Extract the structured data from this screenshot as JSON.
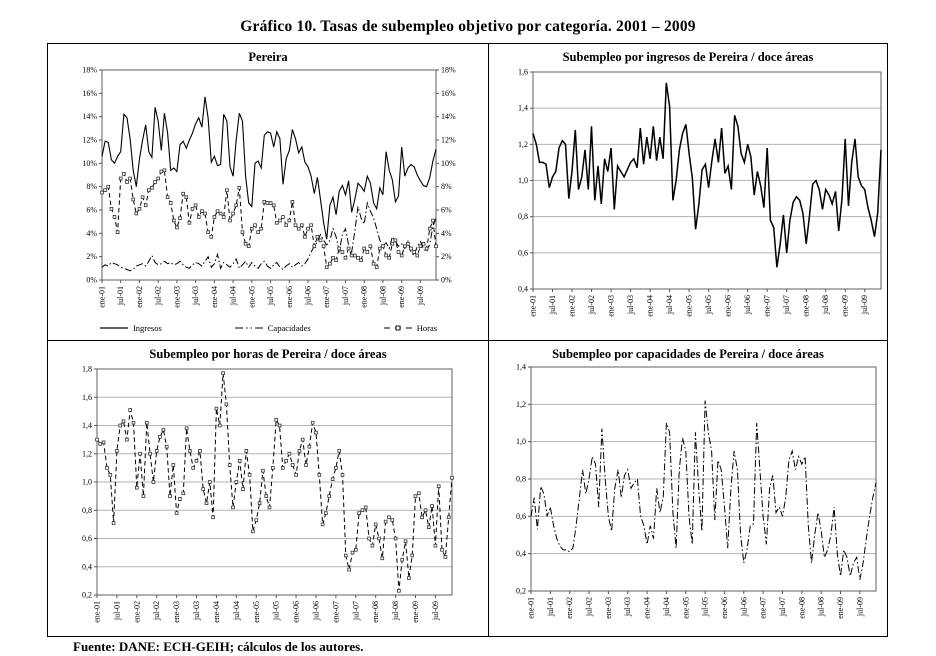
{
  "page": {
    "title": "Gráfico 10. Tasas de subempleo objetivo por categoría. 2001 – 2009",
    "footer": "Fuente: DANE: ECH-GEIH; cálculos de los autores."
  },
  "chart_data": [
    {
      "id": "pereira",
      "type": "line",
      "title": "Pereira",
      "x_label": "",
      "ylabel": "",
      "n_points": 108,
      "x_tick_every": 6,
      "x_tick_labels": [
        "ene-01",
        "jul-01",
        "ene-02",
        "jul-02",
        "ene-03",
        "jul-03",
        "ene-04",
        "jul-04",
        "ene-05",
        "jul-05",
        "ene-06",
        "jul-06",
        "ene-07",
        "jul-07",
        "ene-08",
        "jul-08",
        "ene-09",
        "jul-09"
      ],
      "grid": false,
      "legend_position": "bottom",
      "y_axis": {
        "min": 0,
        "max": 18,
        "step": 2,
        "dual": true,
        "format": "percent",
        "tick_labels": [
          "0%",
          "2%",
          "4%",
          "6%",
          "8%",
          "10%",
          "12%",
          "14%",
          "16%",
          "18%"
        ]
      },
      "series": [
        {
          "name": "Ingresos",
          "style": "solid",
          "marker": "none",
          "width": 1.1,
          "values": [
            10.6,
            11.9,
            11.8,
            10.3,
            10.0,
            10.6,
            11.0,
            14.2,
            13.9,
            12.1,
            9.4,
            8.0,
            10.4,
            12.0,
            13.3,
            11.0,
            10.5,
            14.8,
            13.6,
            11.1,
            14.3,
            12.6,
            9.4,
            9.6,
            9.3,
            11.6,
            11.9,
            11.3,
            12.0,
            12.6,
            13.4,
            13.9,
            13.1,
            15.7,
            13.9,
            10.1,
            10.6,
            9.8,
            9.9,
            14.2,
            13.6,
            9.7,
            8.9,
            12.0,
            14.3,
            13.6,
            8.9,
            6.6,
            6.3,
            10.0,
            10.2,
            9.6,
            12.4,
            12.7,
            12.6,
            11.4,
            12.7,
            12.1,
            8.2,
            10.4,
            11.1,
            12.9,
            12.1,
            10.9,
            11.4,
            10.1,
            9.7,
            8.9,
            7.4,
            8.8,
            6.9,
            4.9,
            3.5,
            6.4,
            7.1,
            5.6,
            7.6,
            8.1,
            7.3,
            8.5,
            5.8,
            6.9,
            8.3,
            8.0,
            7.6,
            8.9,
            8.3,
            6.6,
            6.1,
            7.9,
            7.3,
            11.0,
            9.4,
            8.6,
            6.7,
            7.2,
            11.4,
            8.9,
            9.6,
            9.9,
            9.7,
            9.0,
            8.5,
            8.1,
            8.0,
            8.8,
            10.2,
            11.2
          ]
        },
        {
          "name": "Capacidades",
          "style": "dashdot",
          "marker": "none",
          "width": 1.0,
          "values": [
            1.1,
            1.3,
            1.2,
            1.5,
            1.4,
            1.3,
            1.1,
            1.0,
            0.9,
            0.8,
            0.9,
            1.2,
            1.3,
            1.4,
            1.2,
            1.6,
            2.1,
            1.5,
            1.3,
            1.4,
            1.6,
            1.4,
            1.5,
            1.3,
            1.4,
            1.6,
            1.3,
            1.1,
            1.0,
            1.3,
            1.5,
            1.4,
            1.2,
            1.6,
            2.0,
            1.1,
            1.4,
            2.2,
            1.0,
            1.5,
            1.3,
            1.1,
            1.4,
            1.8,
            1.0,
            1.3,
            1.6,
            1.1,
            1.5,
            1.2,
            1.0,
            1.4,
            1.6,
            1.2,
            1.0,
            1.3,
            1.5,
            1.1,
            0.9,
            1.2,
            1.4,
            1.1,
            1.3,
            1.5,
            1.2,
            1.4,
            1.8,
            2.4,
            2.9,
            3.3,
            3.9,
            3.4,
            3.0,
            3.4,
            4.4,
            3.7,
            2.4,
            3.9,
            4.4,
            3.0,
            2.4,
            4.2,
            6.3,
            5.3,
            4.8,
            6.6,
            5.9,
            5.3,
            4.4,
            3.4,
            2.9,
            3.2,
            2.7,
            3.7,
            3.3,
            2.9,
            3.1,
            2.7,
            3.3,
            2.4,
            2.1,
            2.9,
            3.3,
            2.7,
            2.4,
            3.1,
            4.6,
            5.3
          ]
        },
        {
          "name": "Horas",
          "style": "dashed",
          "marker": "square",
          "width": 1.0,
          "values": [
            7.5,
            7.7,
            8.0,
            6.1,
            5.4,
            4.1,
            8.7,
            9.1,
            8.4,
            8.7,
            6.9,
            5.7,
            6.1,
            7.1,
            6.4,
            7.7,
            7.9,
            8.4,
            8.7,
            9.3,
            9.4,
            7.1,
            6.6,
            5.1,
            4.5,
            5.3,
            7.4,
            7.1,
            4.9,
            6.1,
            6.4,
            5.4,
            5.9,
            5.7,
            4.1,
            3.7,
            5.4,
            5.9,
            5.7,
            5.4,
            7.7,
            5.1,
            5.7,
            6.4,
            7.9,
            4.1,
            3.1,
            2.9,
            4.4,
            4.7,
            4.1,
            4.4,
            6.7,
            6.6,
            6.6,
            6.4,
            4.9,
            5.1,
            5.4,
            4.7,
            5.1,
            6.7,
            4.7,
            4.4,
            4.7,
            3.7,
            4.4,
            4.7,
            2.9,
            3.7,
            3.4,
            2.9,
            1.1,
            1.4,
            1.9,
            1.7,
            2.7,
            2.4,
            1.9,
            2.7,
            2.1,
            2.1,
            1.9,
            1.7,
            2.7,
            2.4,
            2.9,
            1.4,
            1.1,
            2.7,
            2.9,
            2.1,
            1.9,
            3.1,
            3.4,
            2.4,
            2.1,
            2.9,
            3.1,
            2.7,
            2.4,
            2.1,
            2.9,
            3.1,
            2.7,
            4.4,
            5.1,
            2.9
          ]
        }
      ]
    },
    {
      "id": "ingresos-ratio",
      "type": "line",
      "title": "Subempleo por ingresos de Pereira / doce áreas",
      "n_points": 108,
      "x_tick_every": 6,
      "x_tick_labels": [
        "ene-01",
        "jul-01",
        "ene-02",
        "jul-02",
        "ene-03",
        "jul-03",
        "ene-04",
        "jul-04",
        "ene-05",
        "jul-05",
        "ene-06",
        "jul-06",
        "ene-07",
        "jul-07",
        "ene-08",
        "jul-08",
        "ene-09",
        "jul-09"
      ],
      "grid": true,
      "legend_position": "none",
      "y_axis": {
        "min": 0.4,
        "max": 1.6,
        "step": 0.2,
        "dual": false,
        "format": "comma-decimal",
        "tick_labels": [
          "0,4",
          "0,6",
          "0,8",
          "1,0",
          "1,2",
          "1,4",
          "1,6"
        ]
      },
      "series": [
        {
          "name": "Pereira / doce áreas (ingresos)",
          "style": "solid",
          "marker": "none",
          "width": 1.5,
          "values": [
            1.26,
            1.2,
            1.1,
            1.1,
            1.09,
            0.96,
            1.02,
            1.05,
            1.18,
            1.22,
            1.2,
            0.9,
            1.05,
            1.28,
            0.95,
            1.02,
            1.17,
            0.95,
            1.3,
            0.89,
            1.08,
            0.87,
            1.12,
            1.05,
            1.18,
            0.84,
            1.08,
            1.05,
            1.02,
            1.06,
            1.1,
            1.12,
            1.07,
            1.29,
            1.09,
            1.24,
            1.12,
            1.3,
            1.11,
            1.24,
            1.12,
            1.54,
            1.41,
            0.89,
            1.0,
            1.17,
            1.26,
            1.31,
            1.15,
            1.01,
            0.73,
            0.87,
            1.06,
            1.09,
            0.96,
            1.11,
            1.23,
            1.1,
            1.29,
            1.04,
            1.08,
            0.95,
            1.36,
            1.3,
            1.15,
            1.1,
            1.2,
            1.13,
            0.92,
            1.05,
            0.97,
            0.85,
            1.18,
            0.78,
            0.74,
            0.52,
            0.65,
            0.81,
            0.6,
            0.78,
            0.88,
            0.91,
            0.89,
            0.82,
            0.65,
            0.8,
            0.98,
            1.0,
            0.95,
            0.84,
            0.95,
            0.92,
            0.87,
            0.94,
            0.72,
            0.9,
            1.23,
            0.86,
            1.1,
            1.23,
            1.02,
            0.97,
            0.95,
            0.85,
            0.78,
            0.69,
            0.82,
            1.17
          ]
        }
      ]
    },
    {
      "id": "horas-ratio",
      "type": "line",
      "title": "Subempleo por horas de Pereira / doce áreas",
      "n_points": 108,
      "x_tick_every": 6,
      "x_tick_labels": [
        "ene-01",
        "jul-01",
        "ene-02",
        "jul-02",
        "ene-03",
        "jul-03",
        "ene-04",
        "jul-04",
        "ene-05",
        "jul-05",
        "ene-06",
        "jul-06",
        "ene-07",
        "jul-07",
        "ene-08",
        "jul-08",
        "ene-09",
        "jul-09"
      ],
      "grid": true,
      "legend_position": "none",
      "y_axis": {
        "min": 0.2,
        "max": 1.8,
        "step": 0.2,
        "dual": false,
        "format": "comma-decimal",
        "tick_labels": [
          "0,2",
          "0,4",
          "0,6",
          "0,8",
          "1,0",
          "1,2",
          "1,4",
          "1,6",
          "1,8"
        ]
      },
      "series": [
        {
          "name": "Pereira / doce áreas (horas)",
          "style": "dashed",
          "marker": "square",
          "width": 1.0,
          "values": [
            1.3,
            1.27,
            1.28,
            1.1,
            1.05,
            0.71,
            1.22,
            1.4,
            1.43,
            1.3,
            1.51,
            1.42,
            0.96,
            1.2,
            0.9,
            1.42,
            1.2,
            1.0,
            1.22,
            1.32,
            1.37,
            1.25,
            0.9,
            1.12,
            0.78,
            0.88,
            0.92,
            1.38,
            1.22,
            1.1,
            1.15,
            1.22,
            0.95,
            0.85,
            1.0,
            0.75,
            1.52,
            1.4,
            1.77,
            1.55,
            1.12,
            0.82,
            1.0,
            1.15,
            0.95,
            1.22,
            1.05,
            0.65,
            0.73,
            0.85,
            1.08,
            0.9,
            0.82,
            1.1,
            1.44,
            1.4,
            1.1,
            1.15,
            1.2,
            1.12,
            1.05,
            1.22,
            1.3,
            1.12,
            1.25,
            1.42,
            1.35,
            1.05,
            0.7,
            0.78,
            0.9,
            1.02,
            1.1,
            1.22,
            1.05,
            0.48,
            0.38,
            0.5,
            0.52,
            0.78,
            0.8,
            0.82,
            0.6,
            0.55,
            0.7,
            0.6,
            0.46,
            0.72,
            0.75,
            0.73,
            0.6,
            0.23,
            0.45,
            0.58,
            0.32,
            0.48,
            0.9,
            0.92,
            0.75,
            0.8,
            0.68,
            0.83,
            0.55,
            0.97,
            0.52,
            0.47,
            0.75,
            1.03
          ]
        }
      ]
    },
    {
      "id": "capacidades-ratio",
      "type": "line",
      "title": "Subempleo por capacidades de Pereira / doce áreas",
      "n_points": 108,
      "x_tick_every": 6,
      "x_tick_labels": [
        "ene-01",
        "jul-01",
        "ene-02",
        "jul-02",
        "ene-03",
        "jul-03",
        "ene-04",
        "jul-04",
        "ene-05",
        "jul-05",
        "ene-06",
        "jul-06",
        "ene-07",
        "jul-07",
        "ene-08",
        "jul-08",
        "ene-09",
        "jul-09"
      ],
      "grid": true,
      "legend_position": "none",
      "y_axis": {
        "min": 0.2,
        "max": 1.4,
        "step": 0.2,
        "dual": false,
        "format": "comma-decimal",
        "tick_labels": [
          "0,2",
          "0,4",
          "0,6",
          "0,8",
          "1,0",
          "1,2",
          "1,4"
        ]
      },
      "series": [
        {
          "name": "Pereira / doce áreas (capacidades)",
          "style": "dashdot",
          "marker": "none",
          "width": 1.0,
          "values": [
            0.6,
            0.7,
            0.53,
            0.76,
            0.72,
            0.6,
            0.65,
            0.55,
            0.48,
            0.44,
            0.42,
            0.42,
            0.41,
            0.43,
            0.55,
            0.7,
            0.85,
            0.72,
            0.8,
            0.92,
            0.88,
            0.65,
            1.07,
            0.8,
            0.6,
            0.52,
            0.75,
            0.85,
            0.7,
            0.82,
            0.85,
            0.75,
            0.78,
            0.8,
            0.6,
            0.55,
            0.45,
            0.55,
            0.48,
            0.75,
            0.62,
            0.7,
            1.1,
            1.05,
            0.62,
            0.43,
            0.85,
            1.02,
            0.95,
            0.6,
            0.45,
            1.05,
            0.75,
            0.52,
            1.22,
            1.05,
            0.95,
            0.58,
            0.9,
            0.85,
            0.65,
            0.43,
            0.75,
            0.95,
            0.85,
            0.5,
            0.35,
            0.42,
            0.55,
            0.56,
            1.1,
            0.85,
            0.6,
            0.45,
            0.75,
            0.82,
            0.62,
            0.65,
            0.6,
            0.7,
            0.9,
            0.95,
            0.85,
            0.92,
            0.88,
            0.92,
            0.55,
            0.35,
            0.5,
            0.62,
            0.52,
            0.38,
            0.42,
            0.5,
            0.65,
            0.4,
            0.28,
            0.42,
            0.38,
            0.28,
            0.35,
            0.38,
            0.26,
            0.35,
            0.48,
            0.6,
            0.7,
            0.78
          ]
        }
      ]
    }
  ],
  "colors": {
    "line": "#000000",
    "gridline": "#b3b3b3",
    "plot_border": "#7a7a7a",
    "text": "#000000"
  }
}
